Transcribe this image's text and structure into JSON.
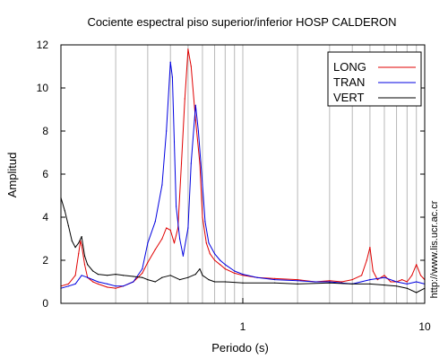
{
  "chart_data": {
    "type": "line",
    "title": "Cociente espectral piso superior/inferior  HOSP CALDERON",
    "xlabel": "Periodo (s)",
    "ylabel": "Amplitud",
    "watermark": "http://www.lis.ucr.ac.cr",
    "xscale": "log",
    "xlim": [
      0.1,
      10
    ],
    "ylim": [
      0,
      12
    ],
    "xticks": [
      {
        "value": 1,
        "label": "1"
      },
      {
        "value": 10,
        "label": "10"
      }
    ],
    "yticks": [
      0,
      2,
      4,
      6,
      8,
      10,
      12
    ],
    "grid": "vertical log minor",
    "legend_position": "top-right",
    "series": [
      {
        "name": "LONG",
        "color": "#e00000",
        "x": [
          0.1,
          0.11,
          0.12,
          0.125,
          0.128,
          0.13,
          0.135,
          0.14,
          0.15,
          0.16,
          0.18,
          0.2,
          0.22,
          0.25,
          0.28,
          0.3,
          0.33,
          0.36,
          0.38,
          0.4,
          0.42,
          0.44,
          0.46,
          0.48,
          0.5,
          0.52,
          0.55,
          0.58,
          0.6,
          0.63,
          0.66,
          0.7,
          0.75,
          0.8,
          0.9,
          1.0,
          1.2,
          1.5,
          2.0,
          2.5,
          3.0,
          3.5,
          4.0,
          4.5,
          4.8,
          5.0,
          5.2,
          5.5,
          6.0,
          6.5,
          7.0,
          7.5,
          8.0,
          8.5,
          9.0,
          9.5,
          10.0
        ],
        "y": [
          0.8,
          0.9,
          1.3,
          2.3,
          2.9,
          2.7,
          1.8,
          1.2,
          1.0,
          0.9,
          0.75,
          0.7,
          0.8,
          1.0,
          1.4,
          1.9,
          2.5,
          3.0,
          3.5,
          3.4,
          2.8,
          3.5,
          6.5,
          9.5,
          11.8,
          11.0,
          8.5,
          6.5,
          4.0,
          2.8,
          2.3,
          2.0,
          1.8,
          1.6,
          1.4,
          1.3,
          1.2,
          1.15,
          1.1,
          1.0,
          1.05,
          1.0,
          1.1,
          1.3,
          2.0,
          2.6,
          1.5,
          1.1,
          1.3,
          1.0,
          1.0,
          1.1,
          1.0,
          1.3,
          1.8,
          1.3,
          1.1
        ]
      },
      {
        "name": "TRAN",
        "color": "#0000e0",
        "x": [
          0.1,
          0.11,
          0.12,
          0.13,
          0.14,
          0.15,
          0.16,
          0.18,
          0.2,
          0.22,
          0.25,
          0.28,
          0.3,
          0.33,
          0.36,
          0.38,
          0.4,
          0.41,
          0.42,
          0.43,
          0.45,
          0.47,
          0.5,
          0.52,
          0.55,
          0.57,
          0.6,
          0.62,
          0.65,
          0.7,
          0.75,
          0.8,
          0.9,
          1.0,
          1.2,
          1.5,
          2.0,
          2.5,
          3.0,
          3.5,
          4.0,
          5.0,
          6.0,
          7.0,
          8.0,
          9.0,
          10.0
        ],
        "y": [
          0.7,
          0.8,
          0.9,
          1.3,
          1.2,
          1.1,
          1.0,
          0.9,
          0.8,
          0.8,
          1.0,
          1.6,
          2.8,
          3.8,
          5.5,
          8.0,
          11.2,
          10.5,
          7.5,
          4.5,
          3.0,
          2.2,
          3.5,
          6.5,
          9.2,
          8.0,
          5.5,
          3.8,
          2.8,
          2.3,
          2.0,
          1.8,
          1.5,
          1.35,
          1.2,
          1.1,
          1.05,
          1.0,
          1.0,
          0.95,
          0.9,
          1.1,
          1.2,
          1.0,
          0.9,
          1.0,
          0.9
        ]
      },
      {
        "name": "VERT",
        "color": "#000000",
        "x": [
          0.1,
          0.105,
          0.11,
          0.115,
          0.12,
          0.125,
          0.13,
          0.135,
          0.14,
          0.15,
          0.16,
          0.18,
          0.2,
          0.22,
          0.25,
          0.28,
          0.3,
          0.33,
          0.36,
          0.4,
          0.45,
          0.5,
          0.55,
          0.58,
          0.6,
          0.65,
          0.7,
          0.8,
          1.0,
          1.5,
          2.0,
          3.0,
          4.0,
          5.0,
          6.0,
          7.0,
          8.0,
          9.0,
          10.0
        ],
        "y": [
          4.9,
          4.3,
          3.6,
          2.9,
          2.6,
          2.8,
          3.1,
          2.2,
          1.8,
          1.5,
          1.35,
          1.3,
          1.35,
          1.3,
          1.25,
          1.2,
          1.1,
          1.0,
          1.2,
          1.3,
          1.1,
          1.2,
          1.35,
          1.6,
          1.3,
          1.1,
          1.0,
          1.0,
          0.95,
          0.95,
          0.9,
          0.95,
          0.9,
          0.9,
          0.85,
          0.8,
          0.7,
          0.5,
          0.7
        ]
      }
    ]
  }
}
